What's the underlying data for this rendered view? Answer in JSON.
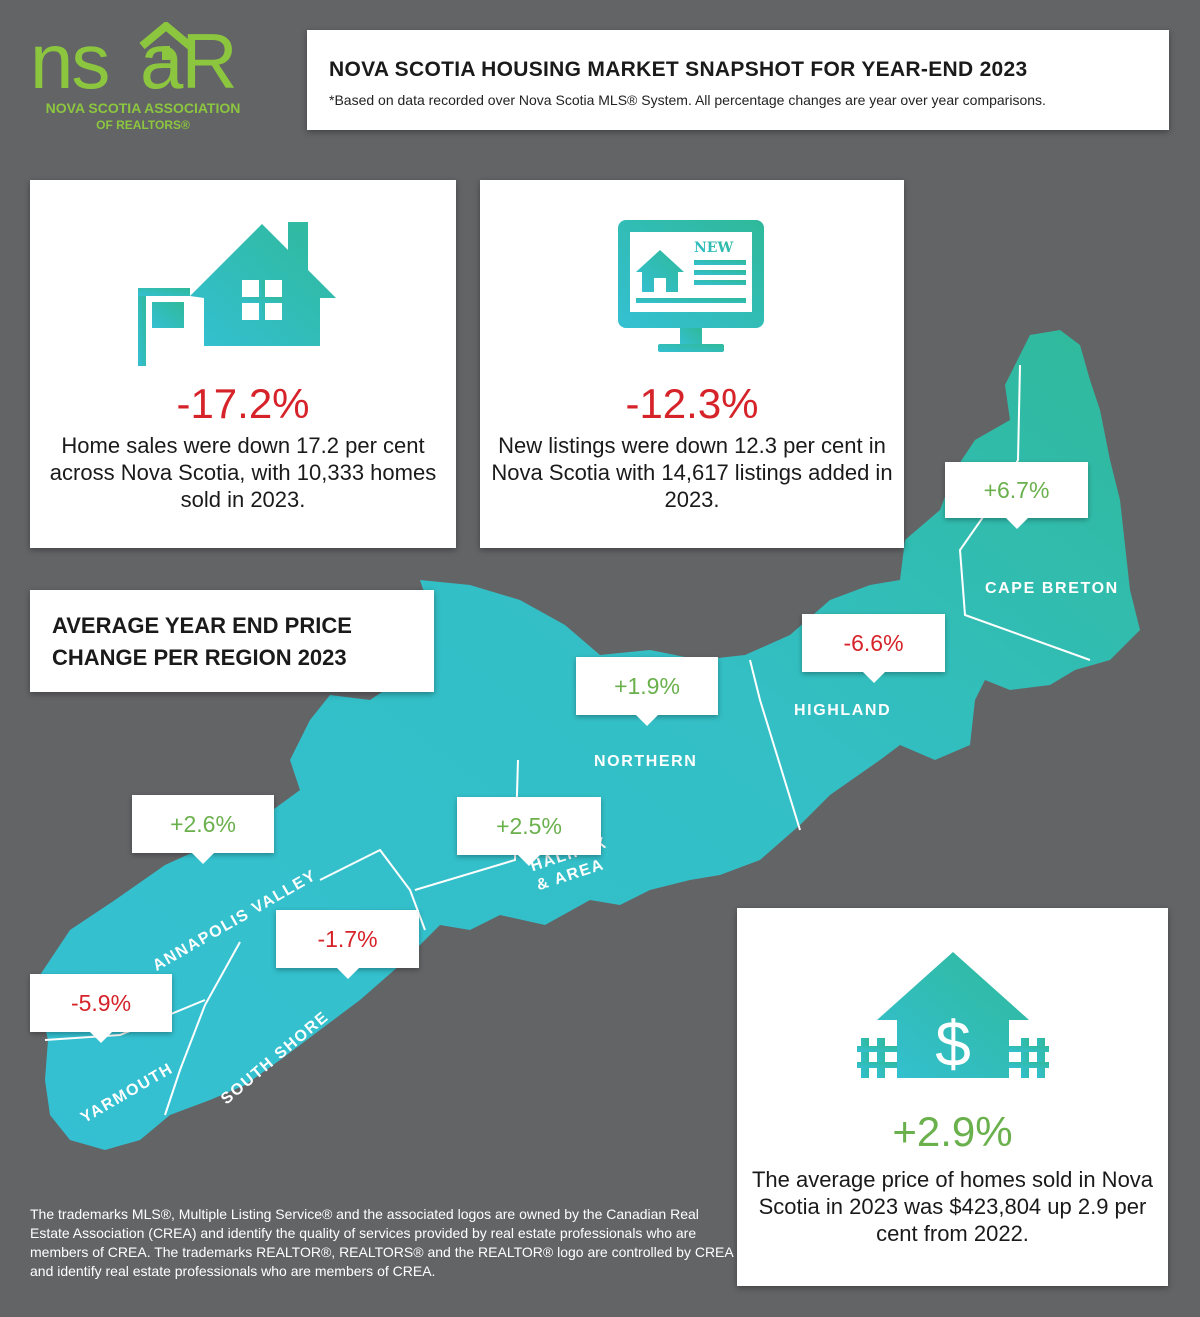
{
  "logo": {
    "wordmark": "nsar",
    "org_name": "NOVA SCOTIA ASSOCIATION",
    "org_name_sub": "OF REALTORS®",
    "brand_color": "#8cc63f"
  },
  "header": {
    "title": "NOVA SCOTIA HOUSING MARKET SNAPSHOT FOR YEAR-END 2023",
    "note": "*Based on data recorded over Nova Scotia MLS® System. All percentage changes are year over year comparisons."
  },
  "sales": {
    "icon": "house-for-sale-icon",
    "percent": "-17.2%",
    "description": "Home sales were down 17.2 per cent across Nova Scotia, with 10,333 homes sold in 2023."
  },
  "listings": {
    "icon": "monitor-new-listing-icon",
    "screen_badge": "NEW",
    "percent": "-12.3%",
    "description": "New listings were down 12.3 per cent in Nova Scotia with 14,617 listings added in 2023."
  },
  "regions_title": "AVERAGE YEAR END PRICE CHANGE PER REGION 2023",
  "regions": {
    "cape_breton": {
      "name": "CAPE BRETON",
      "change": "+6.7%"
    },
    "highland": {
      "name": "HIGHLAND",
      "change": "-6.6%"
    },
    "northern": {
      "name": "NORTHERN",
      "change": "+1.9%"
    },
    "halifax": {
      "name_line1": "HALIFAX",
      "name_line2": "& AREA",
      "change": "+2.5%"
    },
    "annapolis": {
      "name": "ANNAPOLIS VALLEY",
      "change": "+2.6%"
    },
    "south_shore": {
      "name": "SOUTH SHORE",
      "change": "-1.7%"
    },
    "yarmouth": {
      "name": "YARMOUTH",
      "change": "-5.9%"
    }
  },
  "average_price": {
    "icon": "house-dollar-icon",
    "symbol": "$",
    "percent": "+2.9%",
    "description": "The average price of homes sold in Nova Scotia in 2023 was $423,804 up 2.9 per cent from 2022."
  },
  "footer": "The trademarks MLS®, Multiple Listing Service® and the associated logos are owned by the Canadian Real Estate Association (CREA) and identify the quality of services provided by real estate professionals who are members of CREA. The trademarks REALTOR®, REALTORS® and the REALTOR® logo are controlled by CREA and identify real estate professionals who are members of CREA.",
  "colors": {
    "map_teal": "#34c3c9",
    "map_green": "#2fb99a",
    "negative": "#d6232a",
    "positive": "#6ab04c",
    "background": "#636466"
  }
}
